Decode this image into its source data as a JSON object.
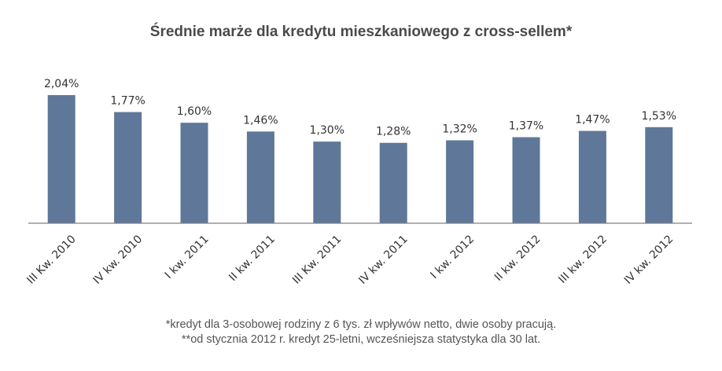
{
  "chart_data": {
    "type": "bar",
    "title": "Średnie marże dla kredytu mieszkaniowego z cross-sellem*",
    "categories": [
      "III Kw. 2010",
      "IV kw. 2010",
      "I kw. 2011",
      "II kw. 2011",
      "III Kw. 2011",
      "IV kw. 2011",
      "I kw. 2012",
      "II kw. 2012",
      "III kw. 2012",
      "IV kw. 2012"
    ],
    "values": [
      2.04,
      1.77,
      1.6,
      1.46,
      1.3,
      1.28,
      1.32,
      1.37,
      1.47,
      1.53
    ],
    "data_labels": [
      "2,04%",
      "1,77%",
      "1,60%",
      "1,46%",
      "1,30%",
      "1,28%",
      "1,32%",
      "1,37%",
      "1,47%",
      "1,53%"
    ],
    "xlabel": "",
    "ylabel": "",
    "ylim": [
      0,
      2.04
    ],
    "grid": false,
    "bar_color": "#5f7899"
  },
  "footnotes": [
    "*kredyt dla 3-osobowej rodziny z 6 tys. zł wpływów netto, dwie osoby pracują.",
    "**od stycznia 2012 r. kredyt 25-letni, wcześniejsza statystyka dla 30 lat."
  ]
}
